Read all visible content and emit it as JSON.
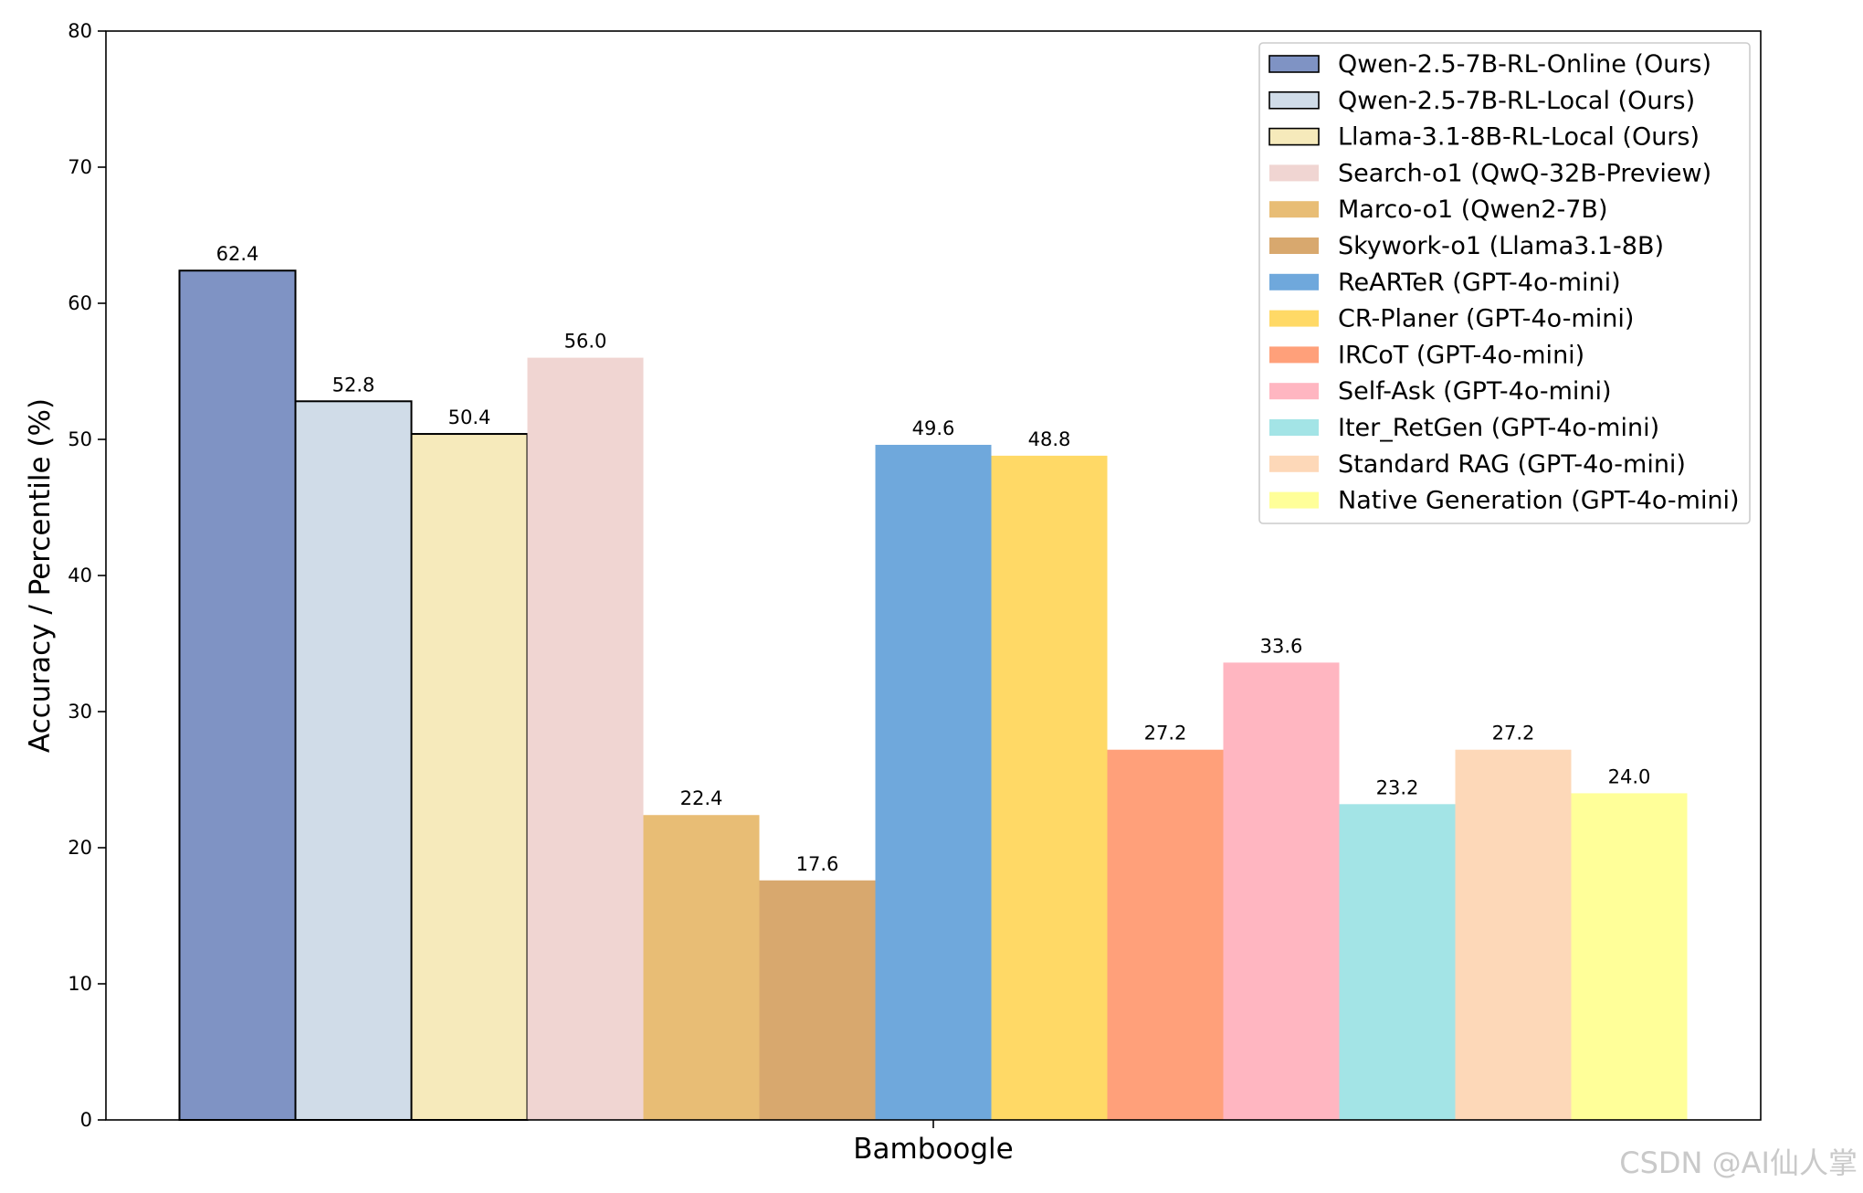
{
  "watermark": "CSDN @AI仙人掌",
  "chart_data": {
    "type": "bar",
    "title": "",
    "xlabel": "",
    "ylabel": "Accuracy / Percentile (%)",
    "ylim": [
      0,
      80
    ],
    "yticks": [
      0,
      10,
      20,
      30,
      40,
      50,
      60,
      70,
      80
    ],
    "categories": [
      "Bamboogle"
    ],
    "legend_position": "top-right",
    "grid": false,
    "series": [
      {
        "name": "Qwen-2.5-7B-RL-Online (Ours)",
        "values": [
          62.4
        ],
        "color": "#7f93c4",
        "edge": true,
        "label": "62.4"
      },
      {
        "name": "Qwen-2.5-7B-RL-Local (Ours)",
        "values": [
          52.8
        ],
        "color": "#d0dce8",
        "edge": true,
        "label": "52.8"
      },
      {
        "name": "Llama-3.1-8B-RL-Local (Ours)",
        "values": [
          50.4
        ],
        "color": "#f6eabb",
        "edge": true,
        "label": "50.4"
      },
      {
        "name": "Search-o1 (QwQ-32B-Preview)",
        "values": [
          56.0
        ],
        "color": "#f0d5d2",
        "edge": false,
        "label": "56.0"
      },
      {
        "name": "Marco-o1 (Qwen2-7B)",
        "values": [
          22.4
        ],
        "color": "#e8bd75",
        "edge": false,
        "label": "22.4"
      },
      {
        "name": "Skywork-o1 (Llama3.1-8B)",
        "values": [
          17.6
        ],
        "color": "#d8a86e",
        "edge": false,
        "label": "17.6"
      },
      {
        "name": "ReARTeR (GPT-4o-mini)",
        "values": [
          49.6
        ],
        "color": "#6fa8dc",
        "edge": false,
        "label": "49.6"
      },
      {
        "name": "CR-Planer (GPT-4o-mini)",
        "values": [
          48.8
        ],
        "color": "#ffd966",
        "edge": false,
        "label": "48.8"
      },
      {
        "name": "IRCoT (GPT-4o-mini)",
        "values": [
          27.2
        ],
        "color": "#ffa07a",
        "edge": false,
        "label": "27.2"
      },
      {
        "name": "Self-Ask (GPT-4o-mini)",
        "values": [
          33.6
        ],
        "color": "#ffb6c1",
        "edge": false,
        "label": "33.6"
      },
      {
        "name": "Iter_RetGen (GPT-4o-mini)",
        "values": [
          23.2
        ],
        "color": "#a3e4e6",
        "edge": false,
        "label": "23.2"
      },
      {
        "name": "Standard RAG (GPT-4o-mini)",
        "values": [
          27.2
        ],
        "color": "#fdd8b8",
        "edge": false,
        "label": "27.2"
      },
      {
        "name": "Native Generation (GPT-4o-mini)",
        "values": [
          24.0
        ],
        "color": "#ffff99",
        "edge": false,
        "label": "24.0"
      }
    ]
  }
}
